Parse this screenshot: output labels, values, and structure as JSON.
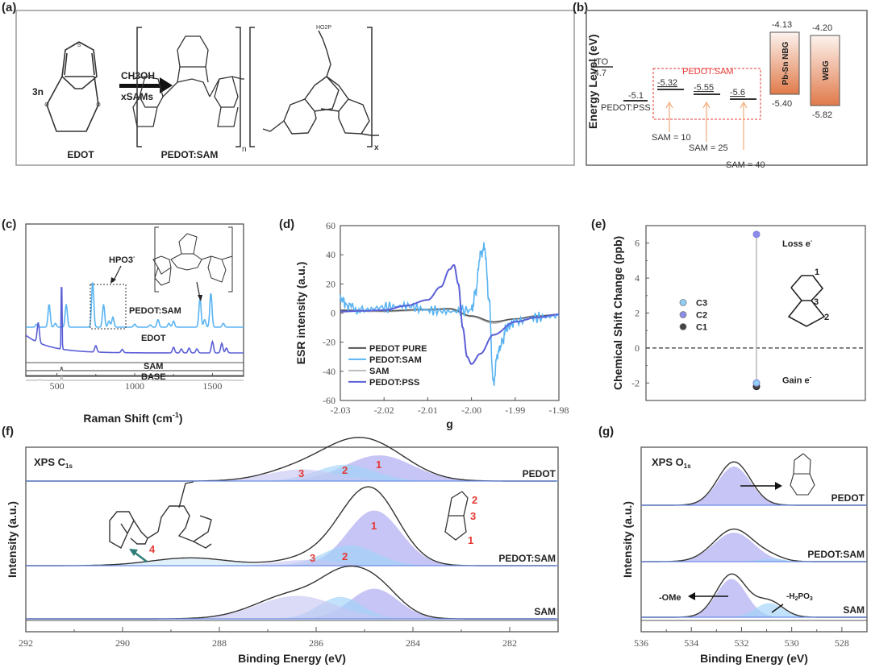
{
  "panel_labels": [
    "(a)",
    "(b)",
    "(c)",
    "(d)",
    "(e)",
    "(f)",
    "(g)"
  ],
  "panel_a": {
    "reactant_coeff": "3n",
    "reactant_name": "EDOT",
    "reagent_top": "CH3OH",
    "reagent_bottom": "xSAMs",
    "product_name": "PEDOT:SAM",
    "subscript_n": "n",
    "subscript_x": "x",
    "phosphonic_label": "HO2P"
  },
  "chart_data": [
    {
      "id": "b",
      "type": "diagram",
      "ylabel": "Energy Level  (eV)",
      "levels": [
        {
          "name": "ITO",
          "value": -4.7,
          "label": "-4.7"
        },
        {
          "name": "PEDOT:PSS",
          "value": -5.1,
          "label": "-5.1"
        },
        {
          "name": "SAM = 10",
          "value": -5.32,
          "label": "-5.32"
        },
        {
          "name": "SAM = 25",
          "value": -5.55,
          "label": "-5.55"
        },
        {
          "name": "SAM = 40",
          "value": -5.6,
          "label": "-5.6"
        }
      ],
      "group_label": "PEDOT:SAM",
      "bands": [
        {
          "name": "Pb-Sn NBG",
          "top": -4.13,
          "bottom": -5.4,
          "top_label": "-4.13",
          "bottom_label": "-5.40"
        },
        {
          "name": "WBG",
          "top": -4.2,
          "bottom": -5.82,
          "top_label": "-4.20",
          "bottom_label": "-5.82"
        }
      ],
      "colors": {
        "group_box": "#e53935",
        "arrow": "#f4b183",
        "band_top": "#fdf1ea",
        "band_bottom": "#e07a4a"
      }
    },
    {
      "id": "c",
      "type": "line",
      "xlabel": "Raman Shift (cm-1)",
      "ylabel": "",
      "xlim": [
        300,
        1700
      ],
      "xticks": [
        500,
        1000,
        1500
      ],
      "series": [
        {
          "name": "PEDOT:SAM",
          "color": "#5ab4f2",
          "baseline": 0.3,
          "peaks": [
            [
              370,
              0.04
            ],
            [
              450,
              0.3
            ],
            [
              490,
              0.05
            ],
            [
              560,
              0.3
            ],
            [
              730,
              0.6
            ],
            [
              800,
              0.3
            ],
            [
              835,
              0.08
            ],
            [
              860,
              0.13
            ],
            [
              1000,
              0.04
            ],
            [
              1100,
              0.03
            ],
            [
              1150,
              0.1
            ],
            [
              1220,
              0.05
            ],
            [
              1250,
              0.08
            ],
            [
              1420,
              0.38
            ],
            [
              1450,
              0.1
            ],
            [
              1490,
              0.45
            ],
            [
              1570,
              0.05
            ]
          ]
        },
        {
          "name": "EDOT",
          "color": "#5b5fd6",
          "baseline": 0.0,
          "peaks": [
            [
              380,
              0.25
            ],
            [
              530,
              1.05
            ],
            [
              750,
              0.08
            ],
            [
              920,
              0.04
            ],
            [
              1250,
              0.07
            ],
            [
              1300,
              0.05
            ],
            [
              1350,
              0.06
            ],
            [
              1400,
              0.05
            ],
            [
              1500,
              0.14
            ],
            [
              1560,
              0.12
            ],
            [
              1590,
              0.06
            ]
          ]
        },
        {
          "name": "SAM",
          "color": "#666666",
          "baseline": 0.0,
          "peaks": [
            [
              530,
              0.17
            ],
            [
              1100,
              0.02
            ]
          ]
        },
        {
          "name": "BASE",
          "color": "#bbbbbb",
          "baseline": 0.0,
          "peaks": [
            [
              390,
              0.03
            ],
            [
              530,
              0.27
            ],
            [
              1100,
              0.04
            ],
            [
              1510,
              0.02
            ],
            [
              1580,
              0.02
            ]
          ]
        }
      ],
      "annotations": [
        "HPO3-",
        "PEDOT:SAM",
        "EDOT",
        "SAM",
        "BASE"
      ]
    },
    {
      "id": "d",
      "type": "line",
      "xlabel": "g",
      "ylabel": "ESR intensity (a.u.)",
      "xlim": [
        -2.03,
        -1.98
      ],
      "ylim": [
        -60,
        60
      ],
      "xticks": [
        -2.03,
        -2.02,
        -2.01,
        -2.0,
        -1.99,
        -1.98
      ],
      "xtick_labels": [
        "-2.03",
        "-2.02",
        "-2.01",
        "-2.00",
        "-1.99",
        "-1.98"
      ],
      "yticks": [
        -60,
        -40,
        -20,
        0,
        20,
        40,
        60
      ],
      "legend": [
        "PEDOT PURE",
        "PEDOT:SAM",
        "SAM",
        "PEDOT:PSS"
      ],
      "legend_position": "bottom-left",
      "series": [
        {
          "name": "PEDOT PURE",
          "color": "#555555",
          "x": [
            -2.03,
            -2.02,
            -2.01,
            -2.005,
            -2.0,
            -1.995,
            -1.99,
            -1.985,
            -1.98
          ],
          "y": [
            2,
            1.5,
            2.5,
            3,
            -2,
            -6,
            -4,
            -2,
            -1
          ]
        },
        {
          "name": "PEDOT:SAM",
          "color": "#5ab4f2",
          "x": [
            -2.03,
            -2.028,
            -2.025,
            -2.02,
            -2.015,
            -2.01,
            -2.005,
            -2.0,
            -1.999,
            -1.998,
            -1.997,
            -1.996,
            -1.995,
            -1.994,
            -1.993,
            -1.992,
            -1.99,
            -1.985,
            -1.98
          ],
          "y": [
            10,
            4,
            2,
            4,
            5,
            2,
            1,
            2,
            15,
            40,
            45,
            10,
            -48,
            -28,
            -20,
            -10,
            -6,
            -3,
            -2
          ]
        },
        {
          "name": "SAM",
          "color": "#bbbbbb",
          "x": [
            -2.03,
            -2.02,
            -2.01,
            -2.005,
            -2.0,
            -1.995,
            -1.99,
            -1.985,
            -1.98
          ],
          "y": [
            1.5,
            1,
            2,
            2.5,
            -2.5,
            -7,
            -4,
            -2,
            -1
          ]
        },
        {
          "name": "PEDOT:PSS",
          "color": "#5b5fd6",
          "x": [
            -2.03,
            -2.025,
            -2.02,
            -2.015,
            -2.01,
            -2.007,
            -2.005,
            -2.004,
            -2.003,
            -2.002,
            -2.001,
            -2.0,
            -1.998,
            -1.995,
            -1.99,
            -1.985,
            -1.98
          ],
          "y": [
            1,
            1.5,
            2,
            5,
            9,
            18,
            30,
            33,
            20,
            -10,
            -30,
            -35,
            -28,
            -15,
            -6,
            -3,
            -1
          ]
        }
      ]
    },
    {
      "id": "e",
      "type": "scatter",
      "xlabel": "",
      "ylabel": "Chemical Shift Change (ppb)",
      "ylim": [
        -3,
        7
      ],
      "yticks": [
        -2,
        0,
        2,
        4,
        6
      ],
      "series": [
        {
          "name": "C3",
          "color": "#8fd0f7",
          "y": -2.0
        },
        {
          "name": "C2",
          "color": "#8a8ce8",
          "y": 6.5
        },
        {
          "name": "C1",
          "color": "#444444",
          "y": -2.2
        }
      ],
      "legend": [
        "C3",
        "C2",
        "C1"
      ],
      "legend_position": "center-left",
      "annotations": [
        "Loss e-",
        "Gain e-"
      ],
      "atom_labels": [
        "1",
        "3",
        "2"
      ],
      "reference_line": 0
    },
    {
      "id": "f",
      "type": "area",
      "title": "XPS C1s",
      "xlabel": "Binding Energy (eV)",
      "ylabel": "Intensity (a.u.)",
      "xlim": [
        292,
        281
      ],
      "xticks": [
        292,
        290,
        288,
        286,
        284,
        282
      ],
      "series_labels": [
        "PEDOT",
        "PEDOT:SAM",
        "SAM"
      ],
      "components": {
        "PEDOT": [
          {
            "label": "1",
            "center": 284.7,
            "height": 0.55,
            "width": 0.7,
            "color": "#a9a6ef"
          },
          {
            "label": "2",
            "center": 285.4,
            "height": 0.35,
            "width": 0.6,
            "color": "#9fd3f7"
          },
          {
            "label": "3",
            "center": 286.3,
            "height": 0.25,
            "width": 0.7,
            "color": "#c8c6f3"
          }
        ],
        "PEDOT:SAM": [
          {
            "label": "1",
            "center": 284.8,
            "height": 0.95,
            "width": 0.55,
            "color": "#a9a6ef"
          },
          {
            "label": "2",
            "center": 285.3,
            "height": 0.35,
            "width": 0.55,
            "color": "#9fd3f7"
          },
          {
            "label": "3",
            "center": 286.2,
            "height": 0.1,
            "width": 0.6,
            "color": "#c8c6f3"
          },
          {
            "label": "4",
            "center": 288.6,
            "height": 0.12,
            "width": 0.8,
            "color": "#cfe9fb"
          }
        ],
        "SAM": [
          {
            "label": "",
            "center": 284.8,
            "height": 0.55,
            "width": 0.5,
            "color": "#a9a6ef"
          },
          {
            "label": "",
            "center": 285.5,
            "height": 0.4,
            "width": 0.45,
            "color": "#9fd3f7"
          },
          {
            "label": "",
            "center": 286.4,
            "height": 0.42,
            "width": 0.8,
            "color": "#c8c6f3"
          }
        ]
      },
      "inset_labels": [
        "4",
        "1",
        "2",
        "3"
      ]
    },
    {
      "id": "g",
      "type": "area",
      "title": "XPS O1s",
      "xlabel": "Binding Energy (eV)",
      "ylabel": "Intensity (a.u.)",
      "xlim": [
        536,
        527
      ],
      "xticks": [
        536,
        534,
        532,
        530,
        528
      ],
      "series_labels": [
        "PEDOT",
        "PEDOT:SAM",
        "SAM"
      ],
      "components": {
        "PEDOT": [
          {
            "center": 532.3,
            "height": 1.0,
            "width": 0.65,
            "color": "#a9a6ef"
          }
        ],
        "PEDOT:SAM": [
          {
            "center": 532.3,
            "height": 0.75,
            "width": 0.8,
            "color": "#a9a6ef"
          },
          {
            "center": 530.8,
            "height": 0.08,
            "width": 0.5,
            "color": "#9fd3f7"
          }
        ],
        "SAM": [
          {
            "center": 532.4,
            "height": 0.95,
            "width": 0.6,
            "color": "#a9a6ef"
          },
          {
            "center": 530.9,
            "height": 0.35,
            "width": 0.55,
            "color": "#9fd3f7"
          }
        ]
      },
      "annotations": [
        "-OMe",
        "-H2PO3"
      ]
    }
  ],
  "text": {
    "c_hpo3": "HPO3",
    "c_sup_minus": "-",
    "c_pedotsam": "PEDOT:SAM",
    "c_edot": "EDOT",
    "c_sam": "SAM",
    "c_base": "BASE",
    "c_xlabel": "Raman Shift (cm",
    "c_xlabel_sup": "-1",
    "c_xlabel_end": ")",
    "e_loss": "Loss e",
    "e_gain": "Gain e",
    "e_sup": "-",
    "f_title": "XPS C",
    "f_title_sub": "1s",
    "g_title": "XPS O",
    "g_title_sub": "1s",
    "xps_xlabel": "Binding Energy (eV)",
    "xps_ylabel": "Intensity (a.u.)",
    "g_ome": "-OMe",
    "g_h2po3_pre": "-H",
    "g_h2po3_sub1": "2",
    "g_h2po3_mid": "PO",
    "g_h2po3_sub2": "3"
  }
}
